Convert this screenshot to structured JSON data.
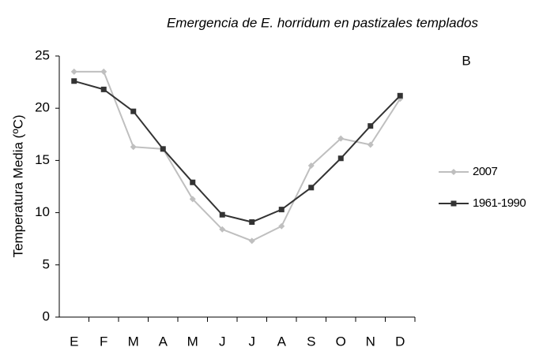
{
  "chart_data": {
    "type": "line",
    "title": "Emergencia de E. horridum en pastizales templados",
    "annotation": "B",
    "y_label": "Temperatura Media (ºC)",
    "categories": [
      "E",
      "F",
      "M",
      "A",
      "M",
      "J",
      "J",
      "A",
      "S",
      "O",
      "N",
      "D"
    ],
    "series": [
      {
        "name": "2007",
        "color": "#bfbfbf",
        "marker": "diamond",
        "values": [
          23.5,
          23.5,
          16.3,
          16.1,
          11.3,
          8.4,
          7.3,
          8.7,
          14.5,
          17.1,
          16.5,
          20.9
        ]
      },
      {
        "name": "1961-1990",
        "color": "#333333",
        "marker": "square",
        "values": [
          22.6,
          21.8,
          19.7,
          16.1,
          12.9,
          9.8,
          9.1,
          10.3,
          12.4,
          15.2,
          18.3,
          21.2
        ]
      }
    ],
    "ylim": [
      0,
      25
    ],
    "yticks": [
      0,
      5,
      10,
      15,
      20,
      25
    ]
  }
}
